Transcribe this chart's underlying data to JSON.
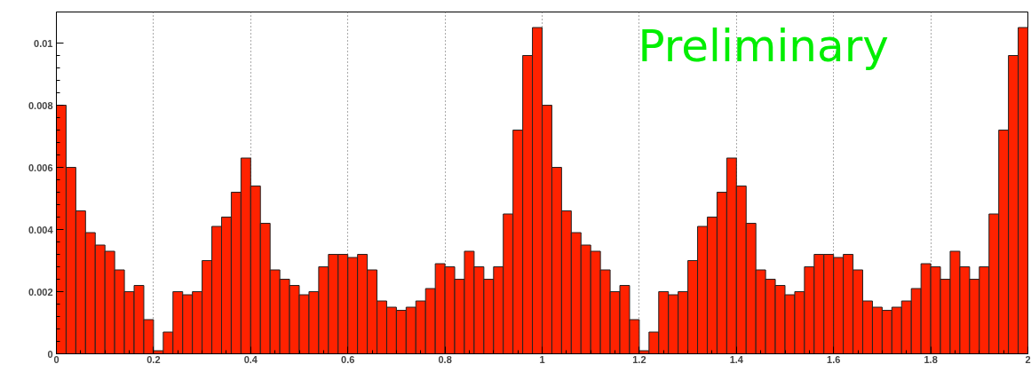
{
  "chart_data": {
    "type": "histogram",
    "bins": [
      0,
      0.02,
      0.04,
      0.06,
      0.08,
      0.1,
      0.12,
      0.14,
      0.16,
      0.18,
      0.2,
      0.22,
      0.24,
      0.26,
      0.28,
      0.3,
      0.32,
      0.34,
      0.36,
      0.38,
      0.4,
      0.42,
      0.44,
      0.46,
      0.48,
      0.5,
      0.52,
      0.54,
      0.56,
      0.58,
      0.6,
      0.62,
      0.64,
      0.66,
      0.68,
      0.7,
      0.72,
      0.74,
      0.76,
      0.78,
      0.8,
      0.82,
      0.84,
      0.86,
      0.88,
      0.9,
      0.92,
      0.94,
      0.96,
      0.98,
      1,
      1.02,
      1.04,
      1.06,
      1.08,
      1.1,
      1.12,
      1.14,
      1.16,
      1.18,
      1.2,
      1.22,
      1.24,
      1.26,
      1.28,
      1.3,
      1.32,
      1.34,
      1.36,
      1.38,
      1.4,
      1.42,
      1.44,
      1.46,
      1.48,
      1.5,
      1.52,
      1.54,
      1.56,
      1.58,
      1.6,
      1.62,
      1.64,
      1.66,
      1.68,
      1.7,
      1.72,
      1.74,
      1.76,
      1.78,
      1.8,
      1.82,
      1.84,
      1.86,
      1.88,
      1.9,
      1.92,
      1.94,
      1.96,
      1.98,
      2
    ],
    "values": [
      0.008,
      0.006,
      0.0046,
      0.0039,
      0.0035,
      0.0033,
      0.0027,
      0.002,
      0.0022,
      0.0011,
      0.0001,
      0.0007,
      0.002,
      0.0019,
      0.002,
      0.003,
      0.0041,
      0.0044,
      0.0052,
      0.0063,
      0.0054,
      0.0042,
      0.0027,
      0.0024,
      0.0022,
      0.0019,
      0.002,
      0.0028,
      0.0032,
      0.0032,
      0.0031,
      0.0032,
      0.0027,
      0.0017,
      0.0015,
      0.0014,
      0.0015,
      0.0017,
      0.0021,
      0.0029,
      0.0028,
      0.0024,
      0.0033,
      0.0028,
      0.0024,
      0.0028,
      0.0045,
      0.0072,
      0.0096,
      0.0105,
      0.008,
      0.006,
      0.0046,
      0.0039,
      0.0035,
      0.0033,
      0.0027,
      0.002,
      0.0022,
      0.0011,
      0.0001,
      0.0007,
      0.002,
      0.0019,
      0.002,
      0.003,
      0.0041,
      0.0044,
      0.0052,
      0.0063,
      0.0054,
      0.0042,
      0.0027,
      0.0024,
      0.0022,
      0.0019,
      0.002,
      0.0028,
      0.0032,
      0.0032,
      0.0031,
      0.0032,
      0.0027,
      0.0017,
      0.0015,
      0.0014,
      0.0015,
      0.0017,
      0.0021,
      0.0029,
      0.0028,
      0.0024,
      0.0033,
      0.0028,
      0.0024,
      0.0028,
      0.0045,
      0.0072,
      0.0096,
      0.0105
    ],
    "color": "#ff2200",
    "xlim": [
      0,
      2
    ],
    "ylim": [
      0,
      0.011
    ],
    "xticks": [
      0,
      0.2,
      0.4,
      0.6,
      0.8,
      1,
      1.2,
      1.4,
      1.6,
      1.8,
      2
    ],
    "yticks": [
      0,
      0.002,
      0.004,
      0.006,
      0.008,
      0.01
    ],
    "grid": "x",
    "annotations": [
      "Preliminary"
    ]
  }
}
